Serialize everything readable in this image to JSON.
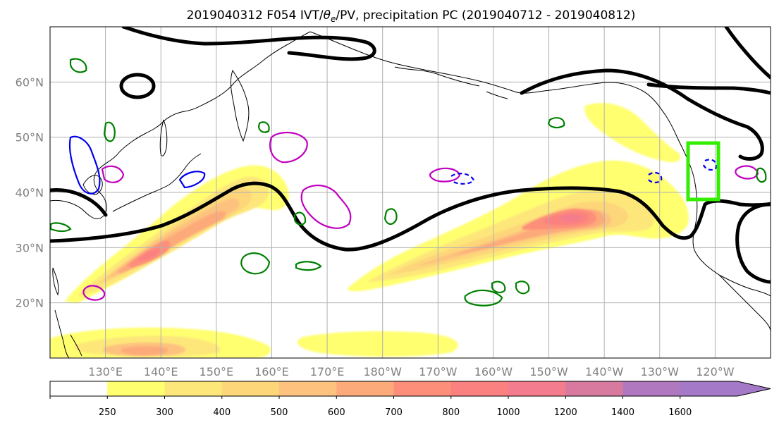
{
  "chart_data": {
    "type": "heatmap",
    "title": "2019040312 F054 IVT/θe/PV, precipitation PC (2019040712 - 2019040812)",
    "title_parts": {
      "prefix": "2019040312 F054 IVT/",
      "theta": "θ",
      "sub": "e",
      "suffix": "/PV, precipitation PC (2019040712 - 2019040812)"
    },
    "map": {
      "projection": "PlateCarree",
      "lon_range": [
        120,
        250
      ],
      "lat_range": [
        10,
        70
      ],
      "grid": true,
      "coastlines": true
    },
    "x_ticks": [
      "130°E",
      "140°E",
      "150°E",
      "160°E",
      "170°E",
      "180°W",
      "170°W",
      "160°W",
      "150°W",
      "140°W",
      "130°W",
      "120°W"
    ],
    "x_tick_lons": [
      130,
      140,
      150,
      160,
      170,
      180,
      190,
      200,
      210,
      220,
      230,
      240
    ],
    "y_ticks": [
      "20°N",
      "30°N",
      "40°N",
      "50°N",
      "60°N"
    ],
    "y_tick_lats": [
      20,
      30,
      40,
      50,
      60
    ],
    "colorbar": {
      "levels": [
        250,
        300,
        400,
        500,
        600,
        700,
        800,
        1000,
        1200,
        1400,
        1600
      ],
      "labels": [
        "250",
        "300",
        "400",
        "500",
        "600",
        "700",
        "800",
        "1000",
        "1200",
        "1400",
        "1600"
      ],
      "colors": [
        "#ffffff",
        "#ffff70",
        "#fde77a",
        "#fdd67a",
        "#fdc27e",
        "#fdaa7a",
        "#fd8f7a",
        "#fb8080",
        "#f37d8e",
        "#d87aa0",
        "#b078bf",
        "#a47ac8"
      ],
      "extend": "max"
    },
    "ivt_peaks": [
      {
        "lon": 136,
        "lat": 29,
        "max": 1000
      },
      {
        "lon": 220,
        "lat": 36,
        "max": 1200
      },
      {
        "lon": 143,
        "lat": 13,
        "max": 700
      }
    ],
    "theta_e_contours": 3,
    "highlight_box": {
      "lon": [
        236,
        242
      ],
      "lat": [
        39,
        49
      ],
      "color": "#33ee00"
    }
  }
}
